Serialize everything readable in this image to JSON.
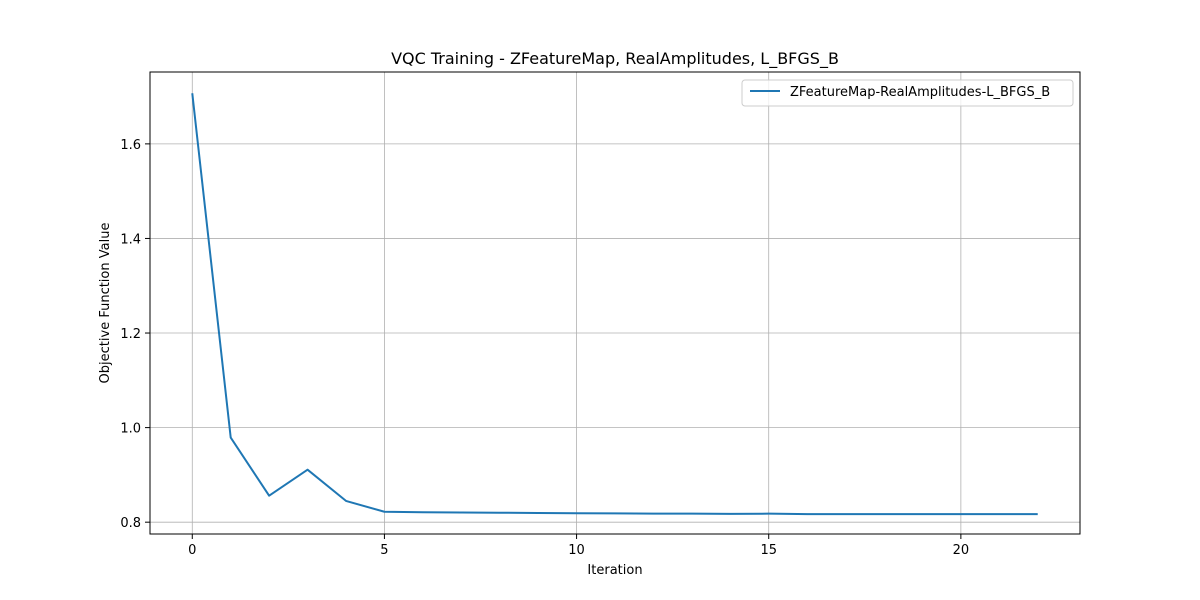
{
  "chart_data": {
    "type": "line",
    "title": "VQC Training - ZFeatureMap, RealAmplitudes, L_BFGS_B",
    "xlabel": "Iteration",
    "ylabel": "Objective Function Value",
    "xlim": [
      -1.1,
      23.1
    ],
    "ylim": [
      0.775,
      1.752
    ],
    "xticks": [
      0,
      5,
      10,
      15,
      20
    ],
    "yticks": [
      0.8,
      1.0,
      1.2,
      1.4,
      1.6
    ],
    "ytick_labels": [
      "0.8",
      "1.0",
      "1.2",
      "1.4",
      "1.6"
    ],
    "grid": true,
    "legend": "top-right",
    "series": [
      {
        "name": "ZFeatureMap-RealAmplitudes-L_BFGS_B",
        "color": "#1f77b4",
        "x": [
          0,
          1,
          2,
          3,
          4,
          5,
          6,
          7,
          8,
          9,
          10,
          11,
          12,
          13,
          14,
          15,
          16,
          17,
          18,
          19,
          20,
          21,
          22
        ],
        "values": [
          1.707,
          0.979,
          0.856,
          0.911,
          0.845,
          0.822,
          0.821,
          0.8205,
          0.82,
          0.8195,
          0.819,
          0.8185,
          0.818,
          0.818,
          0.8175,
          0.818,
          0.817,
          0.817,
          0.817,
          0.817,
          0.817,
          0.817,
          0.817
        ]
      }
    ]
  }
}
